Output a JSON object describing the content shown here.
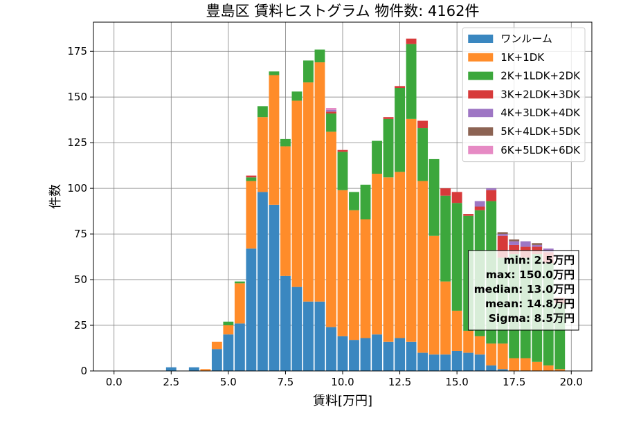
{
  "chart_data": {
    "type": "bar",
    "stacked": true,
    "title": "豊島区 賃料ヒストグラム 物件数: 4162件",
    "xlabel": "賃料[万円]",
    "ylabel": "件数",
    "xlim": [
      -0.9,
      20.9
    ],
    "ylim": [
      0,
      191
    ],
    "xticks": [
      0.0,
      2.5,
      5.0,
      7.5,
      10.0,
      12.5,
      15.0,
      17.5,
      20.0
    ],
    "xtick_labels": [
      "0.0",
      "2.5",
      "5.0",
      "7.5",
      "10.0",
      "12.5",
      "15.0",
      "17.5",
      "20.0"
    ],
    "yticks": [
      0,
      25,
      50,
      75,
      100,
      125,
      150,
      175
    ],
    "ytick_labels": [
      "0",
      "25",
      "50",
      "75",
      "100",
      "125",
      "150",
      "175"
    ],
    "grid": true,
    "legend_position": "top-right",
    "bin_width": 0.5,
    "x": [
      0.0,
      0.5,
      1.0,
      1.5,
      2.0,
      2.5,
      3.0,
      3.5,
      4.0,
      4.5,
      5.0,
      5.5,
      6.0,
      6.5,
      7.0,
      7.5,
      8.0,
      8.5,
      9.0,
      9.5,
      10.0,
      10.5,
      11.0,
      11.5,
      12.0,
      12.5,
      13.0,
      13.5,
      14.0,
      14.5,
      15.0,
      15.5,
      16.0,
      16.5,
      17.0,
      17.5,
      18.0,
      18.5,
      19.0,
      19.5
    ],
    "series": [
      {
        "name": "ワンルーム",
        "color": "#3a87c0",
        "values": [
          0,
          0,
          0,
          0,
          0,
          2,
          0,
          2,
          0,
          12,
          20,
          26,
          67,
          98,
          91,
          52,
          46,
          38,
          38,
          24,
          19,
          17,
          18,
          20,
          16,
          18,
          16,
          10,
          9,
          9,
          11,
          10,
          9,
          3,
          1,
          0,
          0,
          0,
          0,
          0
        ]
      },
      {
        "name": "1K+1DK",
        "color": "#ff8c2a",
        "values": [
          0,
          0,
          0,
          0,
          0,
          0,
          0,
          0,
          1,
          4,
          5,
          22,
          37,
          41,
          71,
          71,
          102,
          120,
          131,
          107,
          80,
          71,
          65,
          88,
          90,
          91,
          122,
          94,
          65,
          40,
          22,
          12,
          10,
          12,
          14,
          7,
          7,
          5,
          3,
          1
        ]
      },
      {
        "name": "2K+1LDK+2DK",
        "color": "#3ca73c",
        "values": [
          0,
          0,
          0,
          0,
          0,
          0,
          0,
          0,
          0,
          0,
          2,
          1,
          2,
          6,
          2,
          4,
          5,
          12,
          7,
          10,
          21,
          10,
          19,
          18,
          32,
          46,
          41,
          29,
          42,
          47,
          59,
          63,
          69,
          78,
          47,
          57,
          55,
          59,
          56,
          36
        ]
      },
      {
        "name": "3K+2LDK+3DK",
        "color": "#d73a3a",
        "values": [
          0,
          0,
          0,
          0,
          0,
          0,
          0,
          0,
          0,
          0,
          0,
          0,
          1,
          0,
          0,
          0,
          0,
          0,
          0,
          1,
          1,
          0,
          0,
          0,
          1,
          1,
          3,
          4,
          0,
          4,
          6,
          1,
          2,
          6,
          12,
          5,
          6,
          4,
          6,
          3
        ]
      },
      {
        "name": "4K+3LDK+4DK",
        "color": "#9e76c4",
        "values": [
          0,
          0,
          0,
          0,
          0,
          0,
          0,
          0,
          0,
          0,
          0,
          0,
          0,
          0,
          0,
          0,
          0,
          0,
          0,
          1,
          0,
          0,
          0,
          0,
          0,
          0,
          0,
          0,
          0,
          0,
          0,
          0,
          3,
          1,
          1,
          2,
          3,
          1,
          2,
          0
        ]
      },
      {
        "name": "5K+4LDK+5DK",
        "color": "#8c6353",
        "values": [
          0,
          0,
          0,
          0,
          0,
          0,
          0,
          0,
          0,
          0,
          0,
          0,
          0,
          0,
          0,
          0,
          0,
          0,
          0,
          0,
          0,
          0,
          0,
          0,
          0,
          0,
          0,
          0,
          0,
          0,
          0,
          0,
          0,
          0,
          1,
          1,
          0,
          1,
          0,
          0
        ]
      },
      {
        "name": "6K+5LDK+6DK",
        "color": "#e68ac4",
        "values": [
          0,
          0,
          0,
          0,
          0,
          0,
          0,
          0,
          0,
          0,
          0,
          0,
          0,
          0,
          0,
          0,
          0,
          0,
          0,
          1,
          0,
          0,
          0,
          0,
          0,
          0,
          0,
          0,
          0,
          0,
          0,
          0,
          0,
          0,
          0,
          0,
          0,
          0,
          0,
          0
        ]
      }
    ],
    "annotation": {
      "position": "right",
      "lines": [
        "min: 2.5万円",
        "max: 150.0万円",
        "median: 13.0万円",
        "mean: 14.8万円",
        "Sigma: 8.5万円"
      ]
    }
  }
}
